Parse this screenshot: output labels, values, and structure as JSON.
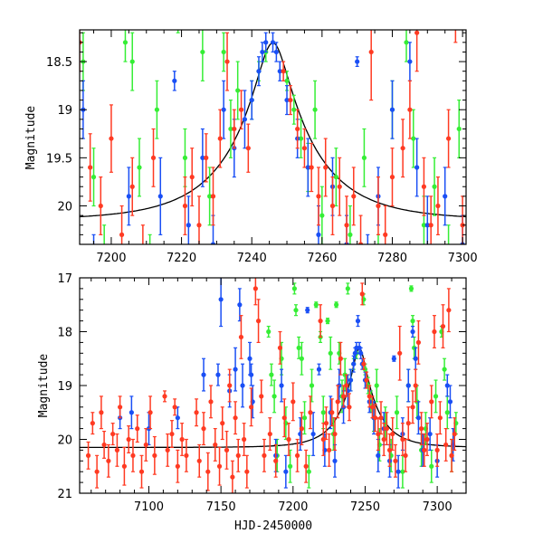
{
  "colors": {
    "red": "#ff3a22",
    "green": "#35ee35",
    "blue": "#1a4ff5",
    "model": "#000000"
  },
  "chart_data": [
    {
      "type": "scatter",
      "panel": "top",
      "title": "",
      "xlabel": "",
      "ylabel": "Magnitude",
      "xlim": [
        7191,
        7301
      ],
      "ylim": [
        20.4,
        18.17
      ],
      "y_inverted": true,
      "xticks": [
        7200,
        7220,
        7240,
        7260,
        7280,
        7300
      ],
      "xtick_labels": [
        "7200",
        "7220",
        "7240",
        "7260",
        "7280",
        "7300"
      ],
      "yticks": [
        18.5,
        19,
        19.5,
        20
      ],
      "ytick_labels": [
        "18.5",
        "19",
        "19.5",
        "20"
      ],
      "x_minor_step": 5,
      "y_minor_step": 0.1,
      "grid": false
    },
    {
      "type": "scatter",
      "panel": "bottom",
      "title": "",
      "xlabel": "HJD-2450000",
      "ylabel": "Magnitude",
      "xlim": [
        7052,
        7320
      ],
      "ylim": [
        21,
        17
      ],
      "y_inverted": true,
      "xticks": [
        7100,
        7150,
        7200,
        7250,
        7300
      ],
      "xtick_labels": [
        "7100",
        "7150",
        "7200",
        "7250",
        "7300"
      ],
      "yticks": [
        17,
        18,
        19,
        20,
        21
      ],
      "ytick_labels": [
        "17",
        "18",
        "19",
        "20",
        "21"
      ],
      "x_minor_step": 10,
      "y_minor_step": 0.2,
      "grid": false
    }
  ],
  "model": {
    "type": "point-lens",
    "t0": 7246,
    "tE": 23,
    "u0": 0.185,
    "baseline_mag": 20.15
  },
  "series": [
    {
      "name": "green",
      "color_key": "green",
      "points": [
        [
          7183,
          18.0,
          0.1
        ],
        [
          7185,
          18.8,
          0.2
        ],
        [
          7187,
          19.2,
          0.3
        ],
        [
          7189,
          20.3,
          0.3
        ],
        [
          7192,
          18.5,
          0.3
        ],
        [
          7195,
          19.7,
          0.3
        ],
        [
          7198,
          20.5,
          0.3
        ],
        [
          7201,
          17.2,
          0.1
        ],
        [
          7202,
          17.6,
          0.1
        ],
        [
          7204,
          18.3,
          0.2
        ],
        [
          7206,
          18.5,
          0.3
        ],
        [
          7208,
          19.6,
          0.3
        ],
        [
          7211,
          20.6,
          0.3
        ],
        [
          7213,
          19.0,
          0.3
        ],
        [
          7216,
          17.5,
          0.05
        ],
        [
          7219,
          18.1,
          0.1
        ],
        [
          7221,
          19.5,
          0.3
        ],
        [
          7224,
          17.8,
          0.05
        ],
        [
          7226,
          18.4,
          0.3
        ],
        [
          7228,
          19.9,
          0.3
        ],
        [
          7230,
          17.5,
          0.05
        ],
        [
          7232,
          18.4,
          0.2
        ],
        [
          7234,
          19.2,
          0.3
        ],
        [
          7236,
          18.8,
          0.3
        ],
        [
          7238,
          17.2,
          0.1
        ],
        [
          7240,
          18.9,
          0.2
        ],
        [
          7242,
          18.6,
          0.1
        ],
        [
          7244,
          18.4,
          0.1
        ],
        [
          7249,
          17.4,
          0.1
        ],
        [
          7250,
          18.7,
          0.1
        ],
        [
          7252,
          19.0,
          0.15
        ],
        [
          7254,
          19.3,
          0.2
        ],
        [
          7256,
          19.6,
          0.25
        ],
        [
          7258,
          19.0,
          0.3
        ],
        [
          7260,
          20.1,
          0.3
        ],
        [
          7264,
          19.7,
          0.3
        ],
        [
          7268,
          20.3,
          0.3
        ],
        [
          7272,
          19.5,
          0.3
        ],
        [
          7276,
          20.6,
          0.3
        ],
        [
          7280,
          19.0,
          0.3
        ],
        [
          7282,
          17.2,
          0.05
        ],
        [
          7283,
          17.8,
          0.1
        ],
        [
          7284,
          18.3,
          0.2
        ],
        [
          7286,
          19.3,
          0.3
        ],
        [
          7289,
          20.2,
          0.3
        ],
        [
          7292,
          19.8,
          0.3
        ],
        [
          7296,
          20.5,
          0.3
        ],
        [
          7299,
          19.2,
          0.3
        ],
        [
          7303,
          18.0,
          0.1
        ],
        [
          7305,
          18.7,
          0.2
        ],
        [
          7307,
          19.5,
          0.3
        ],
        [
          7310,
          20.3,
          0.3
        ],
        [
          7313,
          19.7,
          0.2
        ]
      ]
    },
    {
      "name": "blue",
      "color_key": "blue",
      "points": [
        [
          7080,
          19.6,
          0.2
        ],
        [
          7088,
          19.5,
          0.3
        ],
        [
          7100,
          19.8,
          0.3
        ],
        [
          7120,
          19.6,
          0.2
        ],
        [
          7138,
          18.8,
          0.3
        ],
        [
          7148,
          18.8,
          0.2
        ],
        [
          7150,
          17.4,
          0.5
        ],
        [
          7156,
          19.1,
          0.3
        ],
        [
          7160,
          18.7,
          0.4
        ],
        [
          7163,
          17.5,
          0.3
        ],
        [
          7165,
          19.0,
          0.4
        ],
        [
          7170,
          18.5,
          0.3
        ],
        [
          7171,
          18.8,
          0.2
        ],
        [
          7172,
          19.3,
          0.3
        ],
        [
          7188,
          20.3,
          0.3
        ],
        [
          7192,
          19.0,
          0.3
        ],
        [
          7195,
          20.6,
          0.3
        ],
        [
          7205,
          19.9,
          0.3
        ],
        [
          7210,
          17.6,
          0.05
        ],
        [
          7214,
          19.9,
          0.4
        ],
        [
          7218,
          18.7,
          0.1
        ],
        [
          7222,
          20.2,
          0.3
        ],
        [
          7226,
          19.5,
          0.3
        ],
        [
          7229,
          20.4,
          0.3
        ],
        [
          7232,
          19.0,
          0.3
        ],
        [
          7235,
          19.4,
          0.3
        ],
        [
          7238,
          19.1,
          0.3
        ],
        [
          7240,
          18.9,
          0.2
        ],
        [
          7242,
          18.6,
          0.15
        ],
        [
          7243,
          18.4,
          0.1
        ],
        [
          7244,
          18.3,
          0.1
        ],
        [
          7245,
          17.8,
          0.1
        ],
        [
          7246,
          18.3,
          0.1
        ],
        [
          7247,
          18.4,
          0.1
        ],
        [
          7248,
          18.6,
          0.1
        ],
        [
          7250,
          18.9,
          0.15
        ],
        [
          7253,
          19.3,
          0.2
        ],
        [
          7256,
          19.6,
          0.3
        ],
        [
          7259,
          20.3,
          0.3
        ],
        [
          7263,
          19.8,
          0.3
        ],
        [
          7267,
          20.4,
          0.3
        ],
        [
          7270,
          18.5,
          0.05
        ],
        [
          7273,
          20.6,
          0.3
        ],
        [
          7276,
          19.9,
          0.3
        ],
        [
          7280,
          19.0,
          0.3
        ],
        [
          7283,
          18.0,
          0.1
        ],
        [
          7285,
          18.5,
          0.2
        ],
        [
          7287,
          19.6,
          0.3
        ],
        [
          7290,
          20.2,
          0.3
        ],
        [
          7295,
          19.9,
          0.3
        ],
        [
          7300,
          20.4,
          0.3
        ],
        [
          7307,
          19.0,
          0.2
        ],
        [
          7309,
          19.3,
          0.3
        ],
        [
          7311,
          20.1,
          0.3
        ]
      ]
    },
    {
      "name": "red",
      "color_key": "red",
      "points": [
        [
          7058,
          20.3,
          0.25
        ],
        [
          7061,
          19.7,
          0.2
        ],
        [
          7064,
          20.6,
          0.3
        ],
        [
          7067,
          19.5,
          0.3
        ],
        [
          7069,
          20.1,
          0.25
        ],
        [
          7072,
          20.4,
          0.3
        ],
        [
          7075,
          19.9,
          0.2
        ],
        [
          7078,
          20.2,
          0.3
        ],
        [
          7080,
          19.4,
          0.2
        ],
        [
          7083,
          20.5,
          0.35
        ],
        [
          7086,
          20.0,
          0.25
        ],
        [
          7089,
          20.3,
          0.3
        ],
        [
          7092,
          19.8,
          0.25
        ],
        [
          7095,
          20.6,
          0.3
        ],
        [
          7098,
          20.1,
          0.3
        ],
        [
          7101,
          19.5,
          0.3
        ],
        [
          7104,
          20.3,
          0.35
        ],
        [
          7111,
          19.2,
          0.1
        ],
        [
          7113,
          20.2,
          0.3
        ],
        [
          7116,
          19.9,
          0.25
        ],
        [
          7118,
          19.4,
          0.15
        ],
        [
          7120,
          20.5,
          0.3
        ],
        [
          7123,
          20.0,
          0.3
        ],
        [
          7126,
          20.3,
          0.3
        ],
        [
          7133,
          19.5,
          0.25
        ],
        [
          7135,
          20.4,
          0.3
        ],
        [
          7138,
          19.8,
          0.3
        ],
        [
          7141,
          20.6,
          0.35
        ],
        [
          7143,
          19.3,
          0.3
        ],
        [
          7146,
          20.1,
          0.3
        ],
        [
          7149,
          20.5,
          0.35
        ],
        [
          7151,
          19.7,
          0.3
        ],
        [
          7154,
          20.2,
          0.35
        ],
        [
          7156,
          19.0,
          0.3
        ],
        [
          7158,
          20.7,
          0.3
        ],
        [
          7160,
          19.6,
          0.3
        ],
        [
          7162,
          20.3,
          0.3
        ],
        [
          7164,
          18.1,
          0.4
        ],
        [
          7166,
          20.0,
          0.3
        ],
        [
          7168,
          20.6,
          0.3
        ],
        [
          7171,
          19.4,
          0.35
        ],
        [
          7174,
          17.2,
          0.3
        ],
        [
          7176,
          17.8,
          0.4
        ],
        [
          7178,
          19.2,
          0.3
        ],
        [
          7180,
          20.3,
          0.3
        ],
        [
          7184,
          19.9,
          0.3
        ],
        [
          7188,
          20.4,
          0.3
        ],
        [
          7191,
          18.3,
          0.3
        ],
        [
          7194,
          19.6,
          0.35
        ],
        [
          7197,
          20.0,
          0.3
        ],
        [
          7200,
          19.3,
          0.35
        ],
        [
          7203,
          20.3,
          0.3
        ],
        [
          7206,
          19.8,
          0.3
        ],
        [
          7209,
          20.5,
          0.3
        ],
        [
          7212,
          19.5,
          0.3
        ],
        [
          7219,
          17.8,
          0.3
        ],
        [
          7221,
          20.0,
          0.3
        ],
        [
          7223,
          19.7,
          0.3
        ],
        [
          7225,
          20.2,
          0.3
        ],
        [
          7227,
          19.5,
          0.25
        ],
        [
          7229,
          19.9,
          0.3
        ],
        [
          7231,
          19.3,
          0.3
        ],
        [
          7233,
          18.5,
          0.3
        ],
        [
          7235,
          19.2,
          0.2
        ],
        [
          7237,
          19.0,
          0.2
        ],
        [
          7239,
          19.4,
          0.25
        ],
        [
          7248,
          17.3,
          0.2
        ],
        [
          7249,
          18.6,
          0.1
        ],
        [
          7251,
          18.9,
          0.15
        ],
        [
          7253,
          19.2,
          0.2
        ],
        [
          7255,
          19.4,
          0.2
        ],
        [
          7257,
          19.6,
          0.25
        ],
        [
          7259,
          19.9,
          0.3
        ],
        [
          7261,
          19.6,
          0.3
        ],
        [
          7263,
          20.0,
          0.3
        ],
        [
          7265,
          19.8,
          0.3
        ],
        [
          7267,
          20.2,
          0.3
        ],
        [
          7269,
          19.9,
          0.3
        ],
        [
          7271,
          20.4,
          0.3
        ],
        [
          7274,
          18.4,
          0.5
        ],
        [
          7276,
          20.0,
          0.3
        ],
        [
          7278,
          20.3,
          0.3
        ],
        [
          7280,
          19.7,
          0.3
        ],
        [
          7283,
          19.4,
          0.3
        ],
        [
          7285,
          19.0,
          0.3
        ],
        [
          7287,
          18.2,
          0.4
        ],
        [
          7289,
          19.8,
          0.3
        ],
        [
          7291,
          20.2,
          0.3
        ],
        [
          7293,
          20.0,
          0.3
        ],
        [
          7296,
          19.3,
          0.3
        ],
        [
          7298,
          18.0,
          0.3
        ],
        [
          7300,
          20.2,
          0.3
        ],
        [
          7302,
          19.6,
          0.3
        ],
        [
          7304,
          17.9,
          0.4
        ],
        [
          7306,
          20.1,
          0.3
        ],
        [
          7308,
          17.6,
          0.4
        ],
        [
          7310,
          20.3,
          0.3
        ],
        [
          7312,
          19.9,
          0.3
        ]
      ]
    }
  ]
}
